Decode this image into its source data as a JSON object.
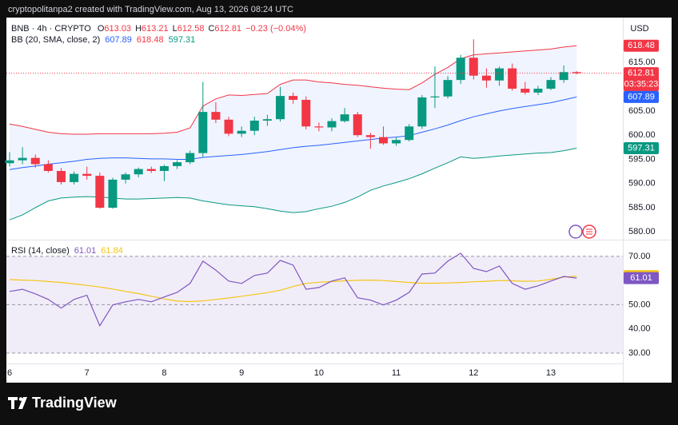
{
  "header": {
    "caption": "cryptopolitanpa2 created with TradingView.com, Aug 13, 2026 08:24 UTC",
    "brand": "TradingView"
  },
  "chart_data": [
    {
      "type": "candlestick",
      "symbol": "BNB · 4h · CRYPTO",
      "ohlc_labels": [
        "O",
        "H",
        "L",
        "C"
      ],
      "change_label": "−0.23 (−0.04%)",
      "currency": "USD",
      "countdown": "03:35:23",
      "up_color": "#089981",
      "down_color": "#f23645",
      "open": [
        594.2,
        594.8,
        595.3,
        594.0,
        592.6,
        590.3,
        592.0,
        591.6,
        585.0,
        590.8,
        591.9,
        593.0,
        592.6,
        593.6,
        594.4,
        596.3,
        604.8,
        603.2,
        600.3,
        600.9,
        603.0,
        603.3,
        608.1,
        607.3,
        601.8,
        601.6,
        602.9,
        604.3,
        600.0,
        599.6,
        598.3,
        599.0,
        601.8,
        607.8,
        608.0,
        611.4,
        616.0,
        612.3,
        611.3,
        613.8,
        609.6,
        608.8,
        609.6,
        611.4,
        613.03
      ],
      "high": [
        596.5,
        597.5,
        596.0,
        594.8,
        593.2,
        592.5,
        593.5,
        592.3,
        591.2,
        592.3,
        593.3,
        593.5,
        593.9,
        594.8,
        596.8,
        611.0,
        606.8,
        603.8,
        601.8,
        603.8,
        604.2,
        610.0,
        608.8,
        608.0,
        602.6,
        603.5,
        605.6,
        604.8,
        600.5,
        601.8,
        599.6,
        602.3,
        608.3,
        614.2,
        612.2,
        616.6,
        619.8,
        613.8,
        614.2,
        614.8,
        611.0,
        610.2,
        612.0,
        614.4,
        613.21
      ],
      "low": [
        593.5,
        594.0,
        593.3,
        592.3,
        589.8,
        589.8,
        590.8,
        584.8,
        584.8,
        590.0,
        591.3,
        592.2,
        590.5,
        593.0,
        594.0,
        595.5,
        602.5,
        599.8,
        599.6,
        600.0,
        601.9,
        602.8,
        606.5,
        601.2,
        600.8,
        600.8,
        602.6,
        599.6,
        597.2,
        598.0,
        597.8,
        598.7,
        601.3,
        605.6,
        607.6,
        610.6,
        611.5,
        609.8,
        610.2,
        609.2,
        608.4,
        608.3,
        609.3,
        610.8,
        612.58
      ],
      "close": [
        594.8,
        595.3,
        594.0,
        592.6,
        590.3,
        592.0,
        591.6,
        585.0,
        590.8,
        591.9,
        593.0,
        592.6,
        593.6,
        594.4,
        596.3,
        604.8,
        603.2,
        600.3,
        600.9,
        603.0,
        603.3,
        608.1,
        607.3,
        601.8,
        601.6,
        602.9,
        604.3,
        600.0,
        599.6,
        598.3,
        599.0,
        601.8,
        607.8,
        608.0,
        611.4,
        616.0,
        612.3,
        611.3,
        613.8,
        609.6,
        608.8,
        609.6,
        611.4,
        613.03,
        612.81
      ],
      "indicator": "BB (20, SMA, close, 2)",
      "band_fill": "#2962ff12",
      "series": [
        {
          "color": "#2962ff",
          "values": [
            592.9,
            593.3,
            593.6,
            594.0,
            594.3,
            594.6,
            595.0,
            595.2,
            595.3,
            595.3,
            595.2,
            595.1,
            595.1,
            595.0,
            595.0,
            595.4,
            595.6,
            595.8,
            596.0,
            596.3,
            596.6,
            597.0,
            597.4,
            597.7,
            597.9,
            598.2,
            598.5,
            598.8,
            599.1,
            599.4,
            599.6,
            599.9,
            600.6,
            601.3,
            602.1,
            603.0,
            603.8,
            604.4,
            605.0,
            605.5,
            605.9,
            606.3,
            606.7,
            607.3,
            607.89
          ]
        },
        {
          "color": "#f23645",
          "values": [
            602.3,
            601.8,
            601.2,
            600.6,
            600.3,
            600.2,
            600.2,
            600.3,
            600.3,
            600.3,
            600.3,
            600.3,
            600.4,
            600.6,
            601.5,
            606.0,
            607.5,
            608.3,
            608.2,
            608.4,
            608.6,
            610.5,
            611.4,
            611.4,
            611.0,
            610.8,
            610.5,
            610.3,
            610.0,
            609.7,
            609.5,
            609.4,
            610.8,
            612.6,
            614.0,
            615.8,
            616.6,
            616.8,
            617.0,
            617.2,
            617.4,
            617.6,
            617.8,
            618.2,
            618.48
          ]
        },
        {
          "color": "#089981",
          "values": [
            582.5,
            583.5,
            585.0,
            586.4,
            587.0,
            587.2,
            587.3,
            587.2,
            587.0,
            586.8,
            586.8,
            586.9,
            587.0,
            587.1,
            587.0,
            586.4,
            586.0,
            585.6,
            585.4,
            585.2,
            584.8,
            584.3,
            584.0,
            584.2,
            584.8,
            585.3,
            586.1,
            587.2,
            588.6,
            589.5,
            590.2,
            591.0,
            592.0,
            593.2,
            594.3,
            595.5,
            595.2,
            595.4,
            595.7,
            595.9,
            596.1,
            596.3,
            596.4,
            596.8,
            597.31
          ]
        }
      ],
      "ylim": [
        578.4,
        624.3
      ],
      "yticks": [
        {
          "value": 580,
          "label": "580.00"
        },
        {
          "value": 585,
          "label": "585.00"
        },
        {
          "value": 590,
          "label": "590.00"
        },
        {
          "value": 595,
          "label": "595.00"
        },
        {
          "value": 600,
          "label": "600.00"
        },
        {
          "value": 605,
          "label": "605.00"
        },
        {
          "value": 615,
          "label": "615.00"
        }
      ]
    },
    {
      "type": "line",
      "title": "RSI (14, close)",
      "band_fill": "#7e57c21c",
      "categories": [
        "6",
        null,
        null,
        null,
        null,
        null,
        "7",
        null,
        null,
        null,
        null,
        null,
        "8",
        null,
        null,
        null,
        null,
        null,
        "9",
        null,
        null,
        null,
        null,
        null,
        "10",
        null,
        null,
        null,
        null,
        null,
        "11",
        null,
        null,
        null,
        null,
        null,
        "12",
        null,
        null,
        null,
        null,
        null,
        "13",
        null,
        null
      ],
      "series": [
        {
          "color": "#7e57c2",
          "values": [
            55.5,
            56.4,
            54.5,
            52.2,
            48.6,
            52.2,
            53.9,
            41.3,
            49.9,
            51.2,
            52.2,
            51.2,
            53.2,
            55.1,
            58.8,
            68.0,
            64.3,
            59.8,
            58.8,
            62.1,
            63.1,
            68.3,
            66.4,
            56.4,
            57.1,
            59.8,
            61.1,
            52.9,
            51.9,
            49.9,
            51.9,
            55.1,
            62.7,
            63.1,
            68.0,
            71.3,
            65.0,
            63.7,
            66.0,
            58.8,
            56.4,
            57.8,
            59.8,
            61.7,
            61.01
          ]
        },
        {
          "color": "#f5c518",
          "values": [
            60.4,
            60.2,
            60.0,
            59.6,
            59.2,
            58.6,
            58.0,
            57.3,
            56.5,
            55.5,
            54.6,
            53.5,
            52.4,
            51.5,
            51.3,
            51.6,
            52.2,
            52.8,
            53.5,
            54.2,
            55.0,
            56.0,
            57.5,
            58.8,
            59.3,
            59.6,
            59.9,
            60.1,
            60.2,
            60.0,
            59.6,
            59.2,
            58.9,
            58.9,
            59.0,
            59.2,
            59.5,
            59.7,
            60.0,
            59.9,
            59.7,
            59.8,
            60.5,
            61.4,
            61.84
          ]
        }
      ],
      "hlines": [
        70,
        50,
        30
      ],
      "ylim": [
        25.7,
        76.9
      ],
      "yticks": [
        {
          "value": 30,
          "label": "30.00"
        },
        {
          "value": 40,
          "label": "40.00"
        },
        {
          "value": 50,
          "label": "50.00"
        },
        {
          "value": 60,
          "label": "60.00"
        },
        {
          "value": 70,
          "label": "70.00"
        }
      ]
    }
  ]
}
